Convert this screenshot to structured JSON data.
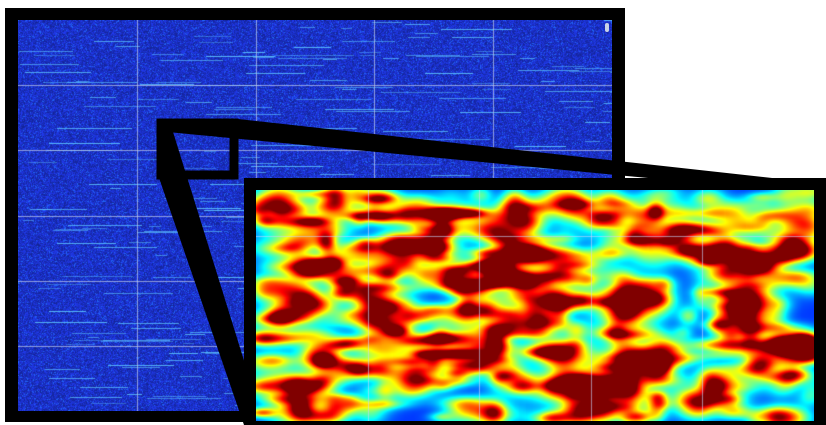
{
  "figure": {
    "type": "spectrogram-with-zoom-inset",
    "main_panel": {
      "colormap": "jet",
      "background_color": "#1a2fb8",
      "trace_color": "#5fc8ff",
      "grid": true,
      "grid_color": "#b8c4e8",
      "grid_columns": 5,
      "grid_rows": 6
    },
    "inset_panel": {
      "colormap": "jet",
      "grid": true,
      "grid_color": "#c8d8ff",
      "grid_columns": 5,
      "grid_rows": 2
    },
    "frame_color": "#000000",
    "zoom_region_shown": true
  }
}
